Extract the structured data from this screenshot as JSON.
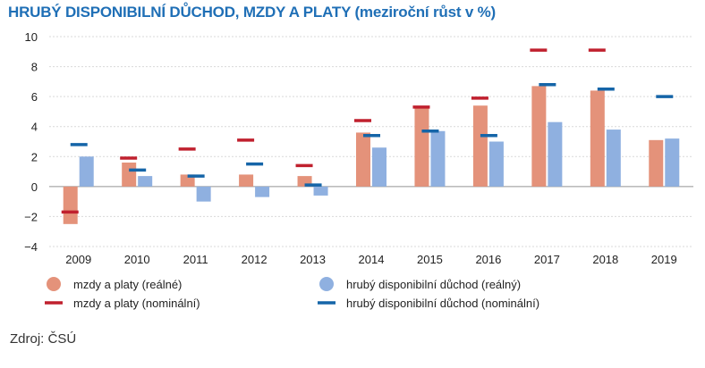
{
  "chart_data": {
    "type": "bar",
    "title": "HRUBÝ DISPONIBILNÍ DŮCHOD, MZDY A PLATY",
    "subtitle": "(meziroční růst v %)",
    "categories": [
      "2009",
      "2010",
      "2011",
      "2012",
      "2013",
      "2014",
      "2015",
      "2016",
      "2017",
      "2018",
      "2019"
    ],
    "ylim": [
      -4,
      10
    ],
    "yticks": [
      -4,
      -2,
      0,
      2,
      4,
      6,
      8,
      10
    ],
    "ytick_labels": [
      "−4",
      "−2",
      "0",
      "2",
      "4",
      "6",
      "8",
      "10"
    ],
    "grid": true,
    "legend_position": "bottom",
    "series": [
      {
        "name": "mzdy a platy (reálné)",
        "kind": "bar",
        "color": "#e4927a",
        "values": [
          -2.5,
          1.6,
          0.8,
          0.8,
          0.7,
          3.6,
          5.3,
          5.4,
          6.7,
          6.4,
          3.1
        ]
      },
      {
        "name": "hrubý disponibilní důchod (reálný)",
        "kind": "bar",
        "color": "#8fb0e0",
        "values": [
          2.0,
          0.7,
          -1.0,
          -0.7,
          -0.6,
          2.6,
          3.7,
          3.0,
          4.3,
          3.8,
          3.2
        ]
      },
      {
        "name": "mzdy a platy (nominální)",
        "kind": "marker",
        "color": "#c0202e",
        "values": [
          -1.7,
          1.9,
          2.5,
          3.1,
          1.4,
          4.4,
          5.3,
          5.9,
          9.1,
          9.1,
          null
        ]
      },
      {
        "name": "hrubý disponibilní důchod (nominální)",
        "kind": "marker",
        "color": "#1565a8",
        "values": [
          2.8,
          1.1,
          0.7,
          1.5,
          0.1,
          3.4,
          3.7,
          3.4,
          6.8,
          6.5,
          6.0
        ]
      }
    ]
  },
  "source": "Zdroj: ČSÚ"
}
